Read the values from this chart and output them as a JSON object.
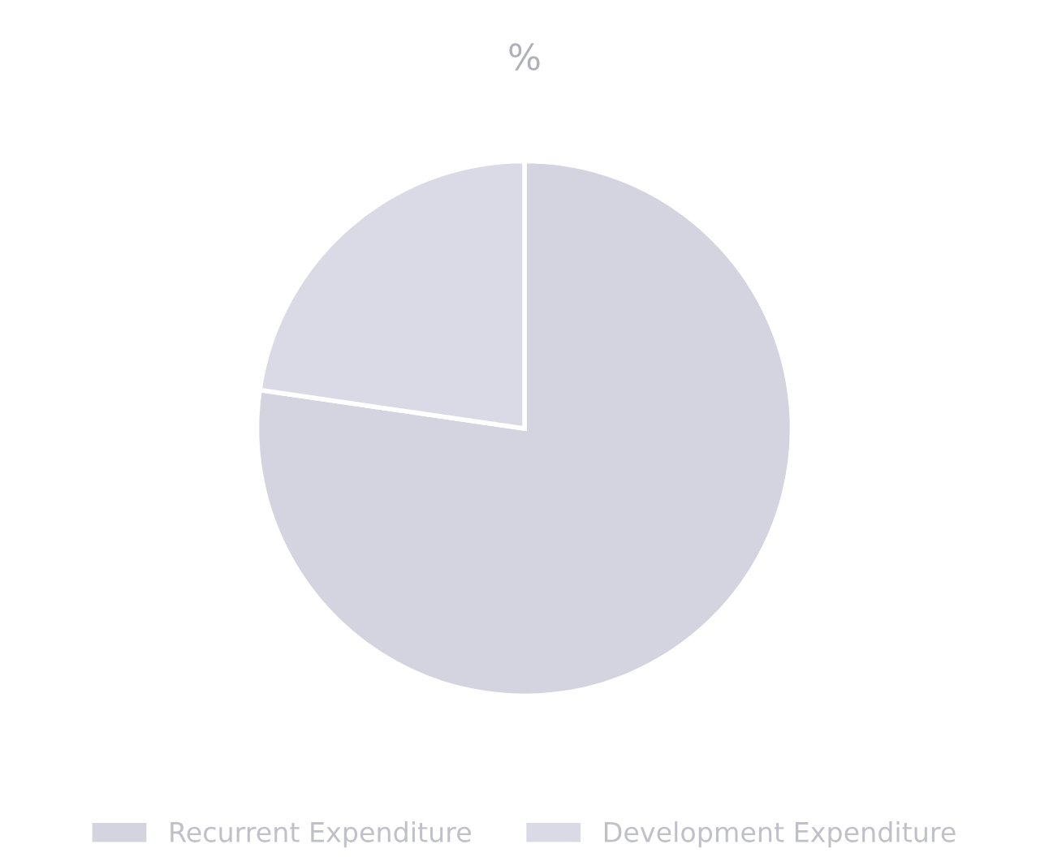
{
  "chart_data": {
    "type": "pie",
    "title": "%",
    "categories": [
      "Recurrent Expenditure",
      "Development Expenditure"
    ],
    "values": [
      77.3,
      22.7
    ],
    "colors": [
      "#d3d4e0",
      "#d9dae5"
    ],
    "legend": "bottom"
  }
}
